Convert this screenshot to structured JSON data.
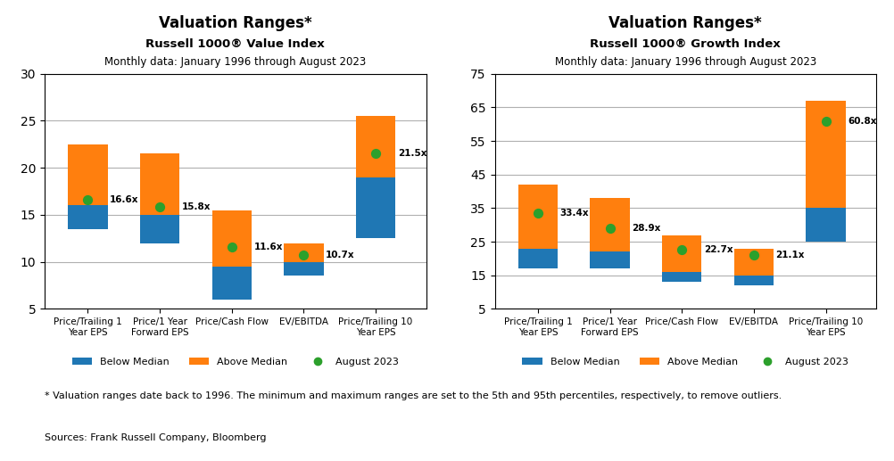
{
  "chart_data": [
    {
      "type": "range_bar",
      "title": "Valuation Ranges*",
      "subtitle": "Russell 1000® Value Index",
      "caption": "Monthly data: January 1996 through August 2023",
      "categories": [
        "Price/Trailing 1\nYear EPS",
        "Price/1 Year\nForward EPS",
        "Price/Cash Flow",
        "EV/EBITDA",
        "Price/Trailing 10\nYear EPS"
      ],
      "series": [
        {
          "name": "Below Median",
          "from": [
            13.5,
            12.0,
            6.0,
            8.5,
            12.5
          ],
          "to": [
            16.0,
            15.0,
            9.5,
            10.0,
            19.0
          ]
        },
        {
          "name": "Above Median",
          "from": [
            16.0,
            15.0,
            9.5,
            10.0,
            19.0
          ],
          "to": [
            22.5,
            21.5,
            15.5,
            12.0,
            25.5
          ]
        },
        {
          "name": "August 2023",
          "type": "scatter",
          "values": [
            16.6,
            15.8,
            11.6,
            10.7,
            21.5
          ],
          "value_labels": [
            "16.6x",
            "15.8x",
            "11.6x",
            "10.7x",
            "21.5x"
          ]
        }
      ],
      "ylim": [
        5,
        30
      ],
      "yticks": [
        5,
        10,
        15,
        20,
        25,
        30
      ],
      "grid": true,
      "data_labels": true,
      "legend": "below"
    },
    {
      "type": "range_bar",
      "title": "Valuation Ranges*",
      "subtitle": "Russell 1000® Growth Index",
      "caption": "Monthly data: January 1996 through August 2023",
      "categories": [
        "Price/Trailing 1\nYear EPS",
        "Price/1 Year\nForward EPS",
        "Price/Cash Flow",
        "EV/EBITDA",
        "Price/Trailing 10\nYear EPS"
      ],
      "series": [
        {
          "name": "Below Median",
          "from": [
            17.0,
            17.0,
            13.0,
            12.0,
            25.0
          ],
          "to": [
            23.0,
            22.0,
            16.0,
            15.0,
            35.0
          ]
        },
        {
          "name": "Above Median",
          "from": [
            23.0,
            22.0,
            16.0,
            15.0,
            35.0
          ],
          "to": [
            42.0,
            38.0,
            27.0,
            23.0,
            67.0
          ]
        },
        {
          "name": "August 2023",
          "type": "scatter",
          "values": [
            33.4,
            28.9,
            22.7,
            21.1,
            60.8
          ],
          "value_labels": [
            "33.4x",
            "28.9x",
            "22.7x",
            "21.1x",
            "60.8x"
          ]
        }
      ],
      "ylim": [
        5,
        75
      ],
      "yticks": [
        5,
        15,
        25,
        35,
        45,
        55,
        65,
        75
      ],
      "grid": true,
      "data_labels": true,
      "legend": "below"
    }
  ],
  "footnote": "* Valuation ranges date back to 1996. The minimum and maximum ranges are set to the 5th and 95th percentiles, respectively, to remove outliers.",
  "source": "Sources: Frank Russell Company, Bloomberg"
}
